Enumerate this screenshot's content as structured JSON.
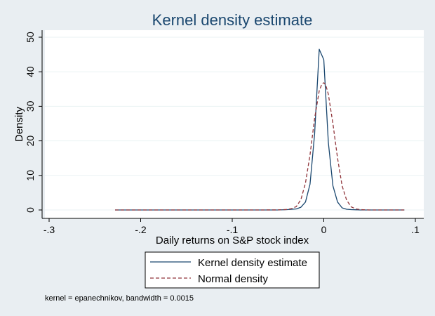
{
  "chart_data": {
    "type": "line",
    "title": "Kernel density estimate",
    "xlabel": "Daily returns on S&P stock index",
    "ylabel": "Density",
    "xlim": [
      -0.3,
      0.1
    ],
    "ylim": [
      0,
      50
    ],
    "x_ticks": [
      -0.3,
      -0.2,
      -0.1,
      0,
      0.1
    ],
    "x_tick_labels": [
      "-.3",
      "-.2",
      "-.1",
      "0",
      ".1"
    ],
    "y_ticks": [
      0,
      10,
      20,
      30,
      40,
      50
    ],
    "y_tick_labels": [
      "0",
      "10",
      "20",
      "30",
      "40",
      "50"
    ],
    "grid": true,
    "legend_position": "bottom",
    "note": "kernel = epanechnikov, bandwidth = 0.0015",
    "series": [
      {
        "name": "Kernel density estimate",
        "color": "#1a476f",
        "style": "solid",
        "x": [
          -0.228,
          -0.2,
          -0.15,
          -0.1,
          -0.07,
          -0.05,
          -0.04,
          -0.03,
          -0.025,
          -0.02,
          -0.015,
          -0.01,
          -0.005,
          0.0,
          0.005,
          0.01,
          0.015,
          0.02,
          0.025,
          0.03,
          0.04,
          0.05,
          0.06,
          0.07,
          0.088
        ],
        "y": [
          0,
          0,
          0,
          0,
          0,
          0,
          0.1,
          0.3,
          0.8,
          2.3,
          7.5,
          22.0,
          46.5,
          43.5,
          19.5,
          7.0,
          2.3,
          0.6,
          0.2,
          0.1,
          0,
          0,
          0,
          0,
          0
        ]
      },
      {
        "name": "Normal density",
        "color": "#90353b",
        "style": "dashed",
        "x": [
          -0.228,
          -0.2,
          -0.15,
          -0.1,
          -0.07,
          -0.05,
          -0.04,
          -0.035,
          -0.03,
          -0.025,
          -0.02,
          -0.015,
          -0.01,
          -0.005,
          -0.002,
          0.0,
          0.002,
          0.005,
          0.01,
          0.015,
          0.02,
          0.025,
          0.03,
          0.035,
          0.04,
          0.05,
          0.07,
          0.088
        ],
        "y": [
          0,
          0,
          0,
          0,
          0,
          0.02,
          0.15,
          0.4,
          1.0,
          3.0,
          7.8,
          16.0,
          26.5,
          34.5,
          36.5,
          36.8,
          36.3,
          33.5,
          25.0,
          15.0,
          7.0,
          2.8,
          0.9,
          0.3,
          0.1,
          0,
          0,
          0
        ]
      }
    ]
  }
}
